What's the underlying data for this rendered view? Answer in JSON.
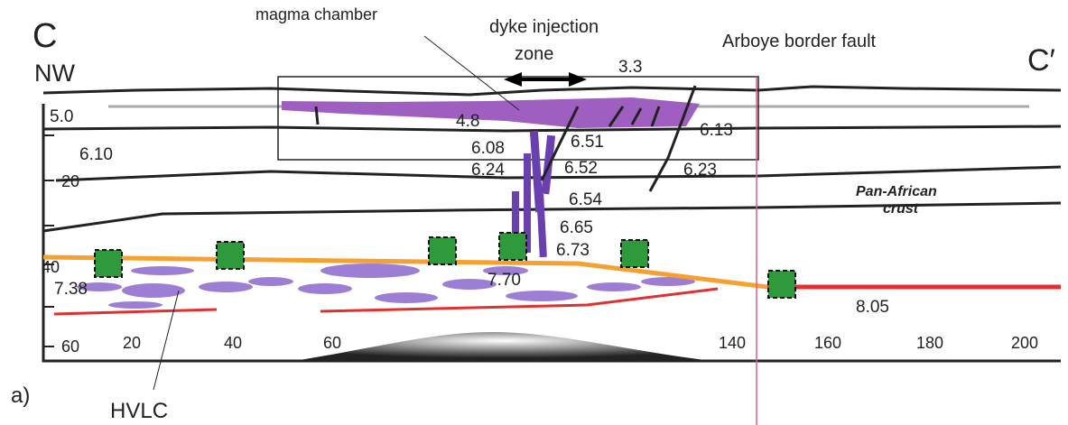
{
  "section": {
    "start": "C",
    "start_dir": "NW",
    "end": "C′",
    "panel": "a)"
  },
  "annotations": {
    "magma_chamber": "magma chamber",
    "dyke_zone": [
      "dyke injection",
      "zone"
    ],
    "fault": "Arboye border fault",
    "crust": [
      "Pan-African",
      "crust"
    ],
    "hvlc": "HVLC"
  },
  "velocities": [
    "3.3",
    "5.0",
    "4.8",
    "6.13",
    "6.10",
    "6.08",
    "6.51",
    "6.24",
    "6.52",
    "6.23",
    "6.54",
    "6.65",
    "6.73",
    "7.70",
    "7.38",
    "8.05"
  ],
  "depth_labels": [
    "20",
    "40",
    "60"
  ],
  "distance_labels": [
    "20",
    "40",
    "60",
    "140",
    "160",
    "180",
    "200"
  ]
}
